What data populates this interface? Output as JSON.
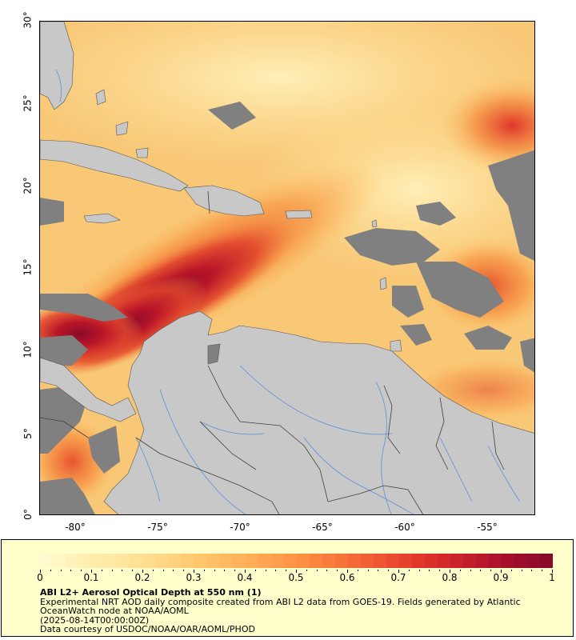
{
  "map": {
    "lat_labels": [
      "30°",
      "25°",
      "20°",
      "15°",
      "10°",
      "5°",
      "0°"
    ],
    "lon_labels": [
      "-80°",
      "-75°",
      "-70°",
      "-65°",
      "-60°",
      "-55°"
    ],
    "extent": {
      "lon_min": -82,
      "lon_max": -51,
      "lat_min": 0,
      "lat_max": 30
    },
    "colors": {
      "land": "#c8c8c8",
      "no_data": "#808080",
      "rivers": "#5b8fd6",
      "borders": "#404040"
    }
  },
  "legend": {
    "colorbar_labels": [
      "0",
      "0.1",
      "0.2",
      "0.3",
      "0.4",
      "0.5",
      "0.6",
      "0.7",
      "0.8",
      "0.9",
      "1"
    ],
    "colorbar_colors": [
      "#fffacd",
      "#ffefb0",
      "#ffe39a",
      "#ffd47f",
      "#ffc066",
      "#ffab55",
      "#ff9244",
      "#f7753a",
      "#ef5530",
      "#e0352a",
      "#c81e2a",
      "#a80f2c",
      "#8a0a2a"
    ],
    "title": "ABI L2+ Aerosol Optical Depth at 550 nm (1)",
    "line1": "Experimental NRT AOD daily composite created from ABI L2 data from GOES-19. Fields generated by Atlantic",
    "line2": "OceanWatch node at NOAA/AOML",
    "line3": "(2025-08-14T00:00:00Z)",
    "line4": "Data courtesy of USDOC/NOAA/OAR/AOML/PHOD"
  }
}
